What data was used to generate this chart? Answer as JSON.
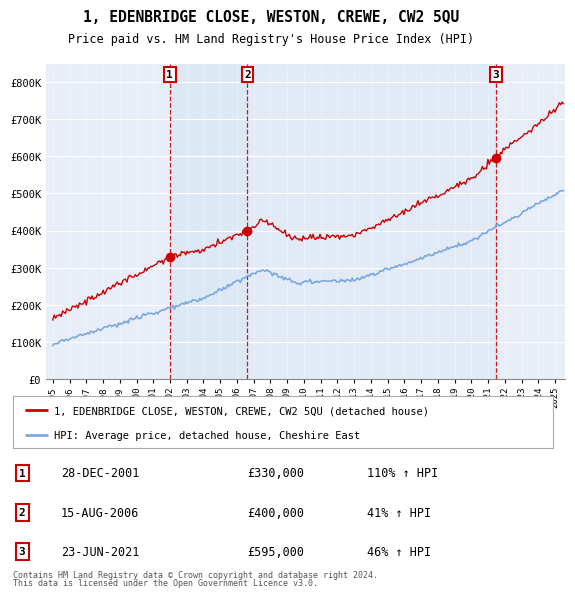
{
  "title": "1, EDENBRIDGE CLOSE, WESTON, CREWE, CW2 5QU",
  "subtitle": "Price paid vs. HM Land Registry's House Price Index (HPI)",
  "ylim": [
    0,
    850000
  ],
  "yticks": [
    0,
    100000,
    200000,
    300000,
    400000,
    500000,
    600000,
    700000,
    800000
  ],
  "ytick_labels": [
    "£0",
    "£100K",
    "£200K",
    "£300K",
    "£400K",
    "£500K",
    "£600K",
    "£700K",
    "£800K"
  ],
  "xlim_start": 1994.6,
  "xlim_end": 2025.6,
  "sale_dates": [
    2001.99,
    2006.62,
    2021.48
  ],
  "sale_prices": [
    330000,
    400000,
    595000
  ],
  "sale_labels": [
    "1",
    "2",
    "3"
  ],
  "sale_date_strs": [
    "28-DEC-2001",
    "15-AUG-2006",
    "23-JUN-2021"
  ],
  "sale_price_strs": [
    "£330,000",
    "£400,000",
    "£595,000"
  ],
  "sale_pct_strs": [
    "110% ↑ HPI",
    "41% ↑ HPI",
    "46% ↑ HPI"
  ],
  "red_color": "#cc0000",
  "blue_color": "#7aaadd",
  "shade_color": "#dde8f5",
  "background_color": "#e8eef8",
  "legend_label_red": "1, EDENBRIDGE CLOSE, WESTON, CREWE, CW2 5QU (detached house)",
  "legend_label_blue": "HPI: Average price, detached house, Cheshire East",
  "footnote1": "Contains HM Land Registry data © Crown copyright and database right 2024.",
  "footnote2": "This data is licensed under the Open Government Licence v3.0."
}
